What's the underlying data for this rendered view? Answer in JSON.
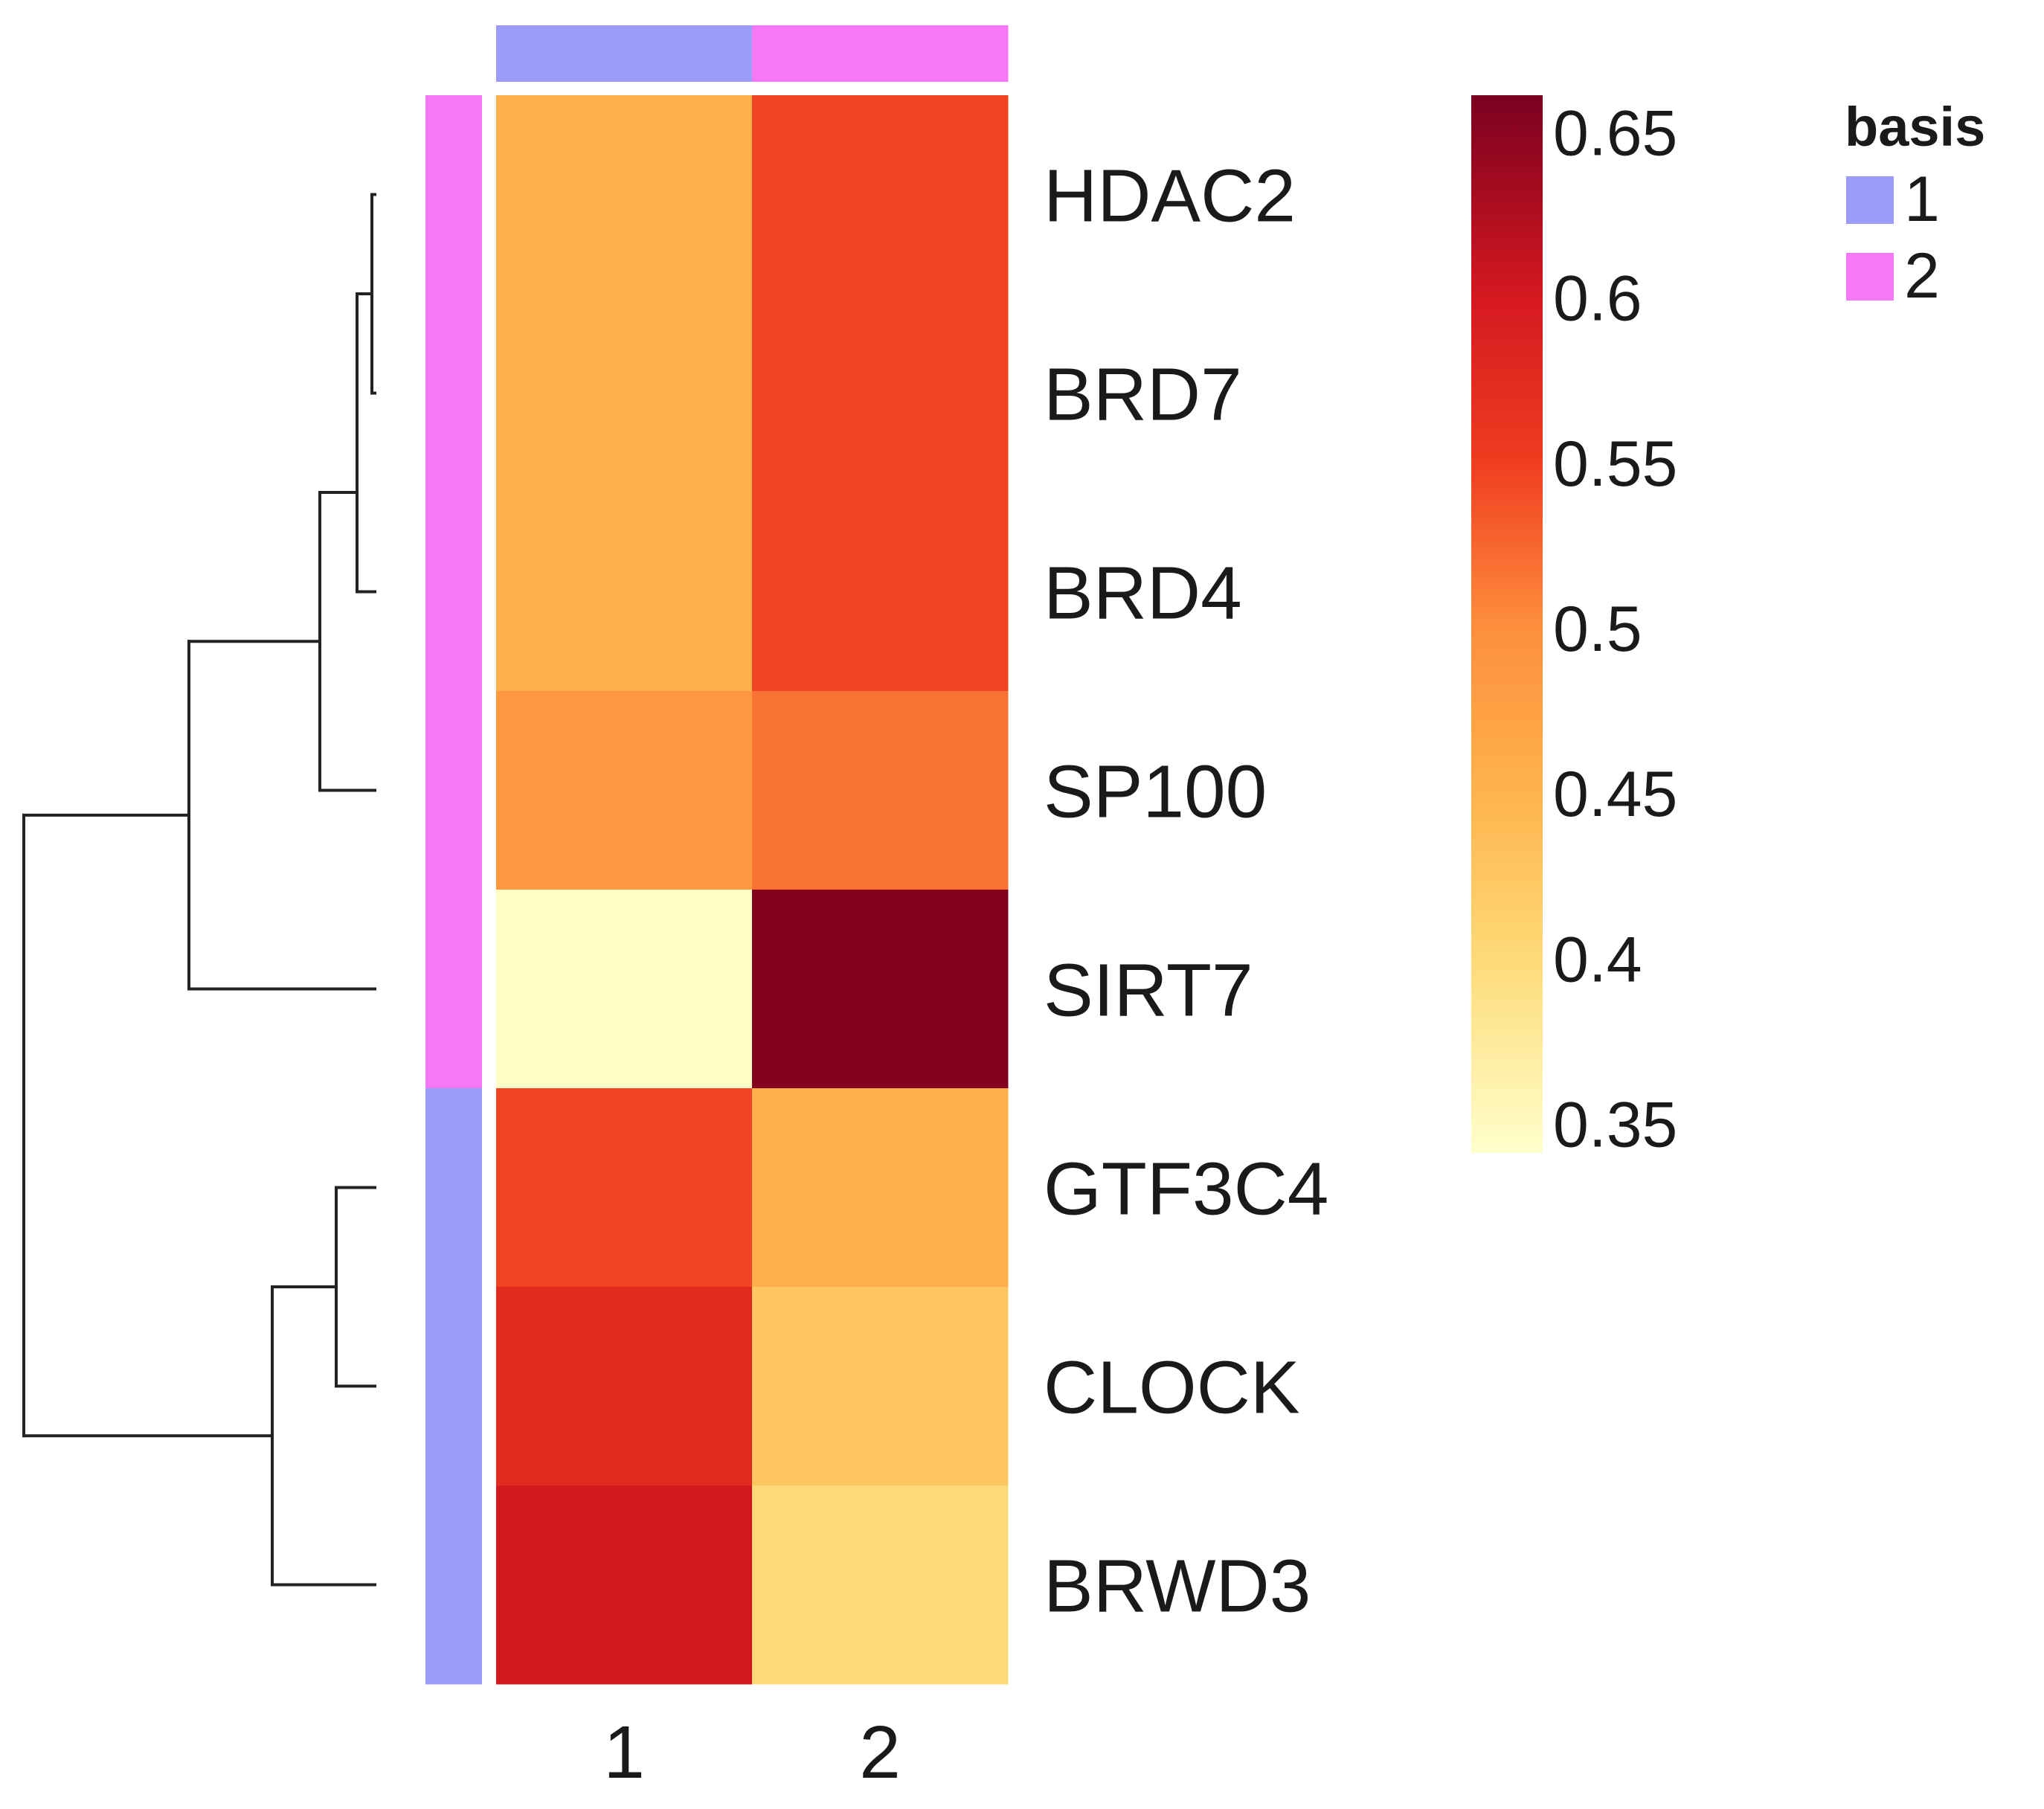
{
  "chart_data": {
    "type": "heatmap",
    "title": "",
    "rows": [
      "HDAC2",
      "BRD7",
      "BRD4",
      "SP100",
      "SIRT7",
      "GTF3C4",
      "CLOCK",
      "BRWD3"
    ],
    "columns": [
      "1",
      "2"
    ],
    "values": [
      [
        0.455,
        0.545
      ],
      [
        0.455,
        0.545
      ],
      [
        0.455,
        0.545
      ],
      [
        0.485,
        0.515
      ],
      [
        0.345,
        0.655
      ],
      [
        0.545,
        0.455
      ],
      [
        0.575,
        0.425
      ],
      [
        0.6,
        0.4
      ]
    ],
    "color_scale": {
      "min": 0.34,
      "max": 0.66,
      "ticks": [
        0.65,
        0.6,
        0.55,
        0.5,
        0.45,
        0.4,
        0.35
      ],
      "tick_labels": [
        "0.65",
        "0.6",
        "0.55",
        "0.5",
        "0.45",
        "0.4",
        "0.35"
      ],
      "stops": [
        {
          "value": 0.34,
          "color": "#ffffcc"
        },
        {
          "value": 0.4,
          "color": "#fed976"
        },
        {
          "value": 0.45,
          "color": "#feb24c"
        },
        {
          "value": 0.5,
          "color": "#fd8d3c"
        },
        {
          "value": 0.55,
          "color": "#f03b20"
        },
        {
          "value": 0.6,
          "color": "#d41820"
        },
        {
          "value": 0.66,
          "color": "#7a0020"
        }
      ]
    },
    "column_annotation": {
      "name": "basis",
      "values": [
        "1",
        "2"
      ]
    },
    "row_annotation": {
      "name": "basis",
      "values": [
        "2",
        "2",
        "2",
        "2",
        "2",
        "1",
        "1",
        "1"
      ]
    },
    "legend": {
      "title": "basis",
      "entries": [
        {
          "label": "1",
          "color": "#9b9cf7"
        },
        {
          "label": "2",
          "color": "#f579f4"
        }
      ],
      "position": "top-right"
    },
    "row_dendrogram": true
  }
}
